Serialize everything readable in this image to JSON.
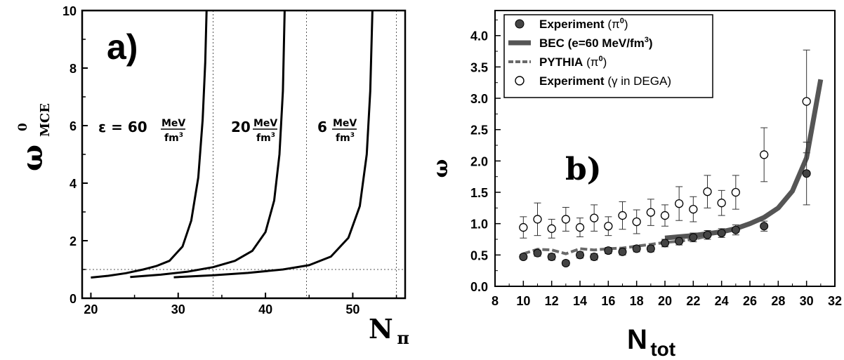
{
  "chart_data": [
    {
      "type": "line",
      "panel_label": "a)",
      "ylabel": "ω",
      "ylabel_sup": "0",
      "ylabel_sub": "MCE",
      "xlabel": "N",
      "xlabel_sub": "π",
      "xlim": [
        19,
        56
      ],
      "ylim": [
        0,
        10
      ],
      "xticks": [
        20,
        30,
        40,
        50
      ],
      "yticks": [
        0,
        2,
        4,
        6,
        8,
        10
      ],
      "grid": false,
      "reference_lines": {
        "h": [
          1.0
        ],
        "v": [
          34,
          44.7,
          55
        ]
      },
      "series": [
        {
          "x": [
            20,
            22,
            24,
            26,
            27.5,
            29,
            30.5,
            31.5,
            32.3,
            32.8,
            33.1,
            33.25
          ],
          "y": [
            0.72,
            0.78,
            0.87,
            1.0,
            1.12,
            1.3,
            1.8,
            2.7,
            4.2,
            6.2,
            8.2,
            10
          ]
        },
        {
          "x": [
            24.5,
            28,
            31,
            34,
            36.5,
            38.5,
            40,
            41,
            41.6,
            42.0,
            42.2
          ],
          "y": [
            0.74,
            0.82,
            0.92,
            1.08,
            1.3,
            1.65,
            2.3,
            3.4,
            5.0,
            7.2,
            10
          ]
        },
        {
          "x": [
            29.5,
            34,
            38,
            42,
            45,
            47.5,
            49.5,
            50.8,
            51.6,
            52.0,
            52.25
          ],
          "y": [
            0.73,
            0.8,
            0.88,
            1.0,
            1.15,
            1.45,
            2.1,
            3.2,
            5.0,
            7.2,
            10
          ]
        }
      ],
      "labels": {
        "l1_prefix": "ε = 60",
        "l2_prefix": "20",
        "l3_prefix": "6",
        "unit_num": "MeV",
        "unit_den": "fm",
        "unit_den_sup": "3"
      }
    },
    {
      "type": "scatter",
      "panel_label": "b)",
      "ylabel": "ω",
      "xlabel": "N",
      "xlabel_sub": "tot",
      "xlim": [
        8,
        32
      ],
      "ylim": [
        0.0,
        4.4
      ],
      "xticks": [
        8,
        10,
        12,
        14,
        16,
        18,
        20,
        22,
        24,
        26,
        28,
        30,
        32
      ],
      "yticks": [
        0.0,
        0.5,
        1.0,
        1.5,
        2.0,
        2.5,
        3.0,
        3.5,
        4.0
      ],
      "legend_position": "top-left",
      "legend": [
        {
          "name": "Experiment",
          "paren": "π",
          "paren_sup": "0",
          "suffix": ""
        },
        {
          "name": "BEC (e=60 MeV/fm",
          "paren": "",
          "paren_sup": "3",
          "suffix": ")"
        },
        {
          "name": "PYTHIA",
          "paren": "π",
          "paren_sup": "0",
          "suffix": ""
        },
        {
          "name": "Experiment",
          "paren": "γ in DEGA",
          "paren_sup": "",
          "suffix": ""
        }
      ],
      "series": [
        {
          "name": "Experiment (π0)",
          "x": [
            10,
            11,
            12,
            13,
            14,
            15,
            16,
            17,
            18,
            19,
            20,
            21,
            22,
            23,
            24,
            25,
            27,
            30
          ],
          "y": [
            0.47,
            0.53,
            0.47,
            0.37,
            0.5,
            0.47,
            0.57,
            0.55,
            0.6,
            0.6,
            0.69,
            0.72,
            0.78,
            0.82,
            0.85,
            0.9,
            0.96,
            1.8
          ],
          "err": [
            0.04,
            0.05,
            0.05,
            0.04,
            0.05,
            0.05,
            0.05,
            0.05,
            0.05,
            0.05,
            0.06,
            0.06,
            0.07,
            0.07,
            0.07,
            0.08,
            0.08,
            0.5
          ]
        },
        {
          "name": "BEC (e=60 MeV/fm3)",
          "x": [
            20,
            21,
            22,
            23,
            24,
            25,
            26,
            27,
            28,
            29,
            30,
            31
          ],
          "y": [
            0.77,
            0.79,
            0.81,
            0.84,
            0.87,
            0.92,
            1.0,
            1.1,
            1.25,
            1.52,
            2.05,
            3.3
          ]
        },
        {
          "name": "PYTHIA (π0)",
          "x": [
            10,
            11,
            12,
            13,
            14,
            15,
            16,
            17,
            18,
            19,
            20,
            21,
            22,
            23
          ],
          "y": [
            0.52,
            0.59,
            0.58,
            0.52,
            0.6,
            0.58,
            0.6,
            0.61,
            0.64,
            0.67,
            0.7,
            0.72,
            0.75,
            0.8
          ]
        },
        {
          "name": "Experiment (γ in DEGA)",
          "x": [
            10,
            11,
            12,
            13,
            14,
            15,
            16,
            17,
            18,
            19,
            20,
            21,
            22,
            23,
            24,
            25,
            27,
            30
          ],
          "y": [
            0.94,
            1.07,
            0.92,
            1.07,
            0.94,
            1.09,
            0.96,
            1.13,
            1.03,
            1.18,
            1.13,
            1.32,
            1.23,
            1.51,
            1.33,
            1.5,
            2.1,
            2.95
          ],
          "err": [
            0.17,
            0.26,
            0.15,
            0.19,
            0.15,
            0.21,
            0.15,
            0.22,
            0.19,
            0.21,
            0.17,
            0.27,
            0.2,
            0.26,
            0.2,
            0.27,
            0.43,
            0.82
          ]
        }
      ]
    }
  ]
}
